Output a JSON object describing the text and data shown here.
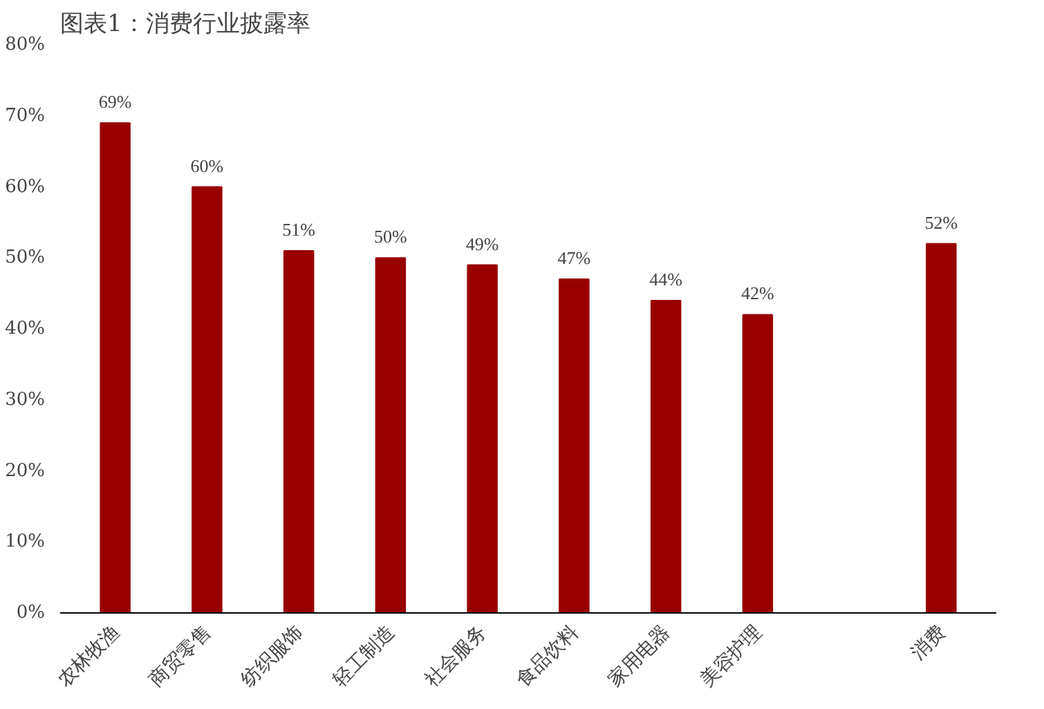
{
  "chart_data": {
    "type": "bar",
    "title": "图表1：消费行业披露率",
    "categories": [
      "农林牧渔",
      "商贸零售",
      "纺织服饰",
      "轻工制造",
      "社会服务",
      "食品饮料",
      "家用电器",
      "美容护理",
      null,
      "消费"
    ],
    "values": [
      69,
      60,
      51,
      50,
      49,
      47,
      44,
      42,
      null,
      52
    ],
    "value_labels": [
      "69%",
      "60%",
      "51%",
      "50%",
      "49%",
      "47%",
      "44%",
      "42%",
      null,
      "52%"
    ],
    "color": "#990000",
    "ylim": [
      0,
      80
    ],
    "yticks": [
      {
        "value": 0,
        "label": "0%"
      },
      {
        "value": 10,
        "label": "10%"
      },
      {
        "value": 20,
        "label": "20%"
      },
      {
        "value": 30,
        "label": "30%"
      },
      {
        "value": 40,
        "label": "40%"
      },
      {
        "value": 50,
        "label": "50%"
      },
      {
        "value": 60,
        "label": "60%"
      },
      {
        "value": 70,
        "label": "70%"
      },
      {
        "value": 80,
        "label": "80%"
      }
    ],
    "grid": false
  }
}
